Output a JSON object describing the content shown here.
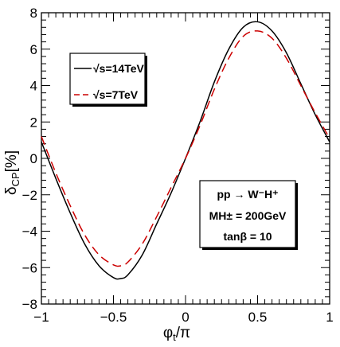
{
  "chart_data": {
    "type": "line",
    "xlabel": "φt/π",
    "ylabel": "δCP[%]",
    "xlim": [
      -1,
      1
    ],
    "ylim": [
      -8,
      8
    ],
    "x_ticks": [
      "−1",
      "−0.5",
      "0",
      "0.5",
      "1"
    ],
    "y_ticks": [
      "−8",
      "−6",
      "−4",
      "−2",
      "0",
      "2",
      "4",
      "6",
      "8"
    ],
    "grid": false,
    "legend_position": "upper-left",
    "series": [
      {
        "name": "√s=14TeV",
        "color": "#000000",
        "style": "solid",
        "x": [
          -1,
          -0.9,
          -0.8,
          -0.7,
          -0.6,
          -0.5,
          -0.45,
          -0.4,
          -0.3,
          -0.2,
          -0.1,
          0,
          0.1,
          0.2,
          0.3,
          0.4,
          0.5,
          0.6,
          0.7,
          0.8,
          0.9,
          1
        ],
        "y": [
          0.9,
          -1.1,
          -3.0,
          -4.7,
          -5.9,
          -6.55,
          -6.6,
          -6.4,
          -5.3,
          -3.6,
          -1.9,
          0.0,
          2.0,
          4.2,
          6.0,
          7.2,
          7.5,
          7.0,
          5.8,
          4.1,
          2.4,
          0.9
        ]
      },
      {
        "name": "√s=7TeV",
        "color": "#cc0000",
        "style": "dashed",
        "x": [
          -1,
          -0.9,
          -0.8,
          -0.7,
          -0.6,
          -0.5,
          -0.45,
          -0.4,
          -0.3,
          -0.2,
          -0.1,
          0,
          0.1,
          0.2,
          0.3,
          0.4,
          0.5,
          0.6,
          0.7,
          0.8,
          0.9,
          1
        ],
        "y": [
          1.2,
          -0.8,
          -2.6,
          -4.2,
          -5.3,
          -5.85,
          -5.9,
          -5.7,
          -4.7,
          -3.2,
          -1.6,
          0.0,
          1.8,
          3.8,
          5.5,
          6.7,
          7.0,
          6.6,
          5.5,
          4.0,
          2.5,
          1.1
        ]
      }
    ],
    "annotation": {
      "line1": "pp → W⁻H⁺",
      "line2": "MH± = 200GeV",
      "line3": "tanβ = 10"
    }
  }
}
